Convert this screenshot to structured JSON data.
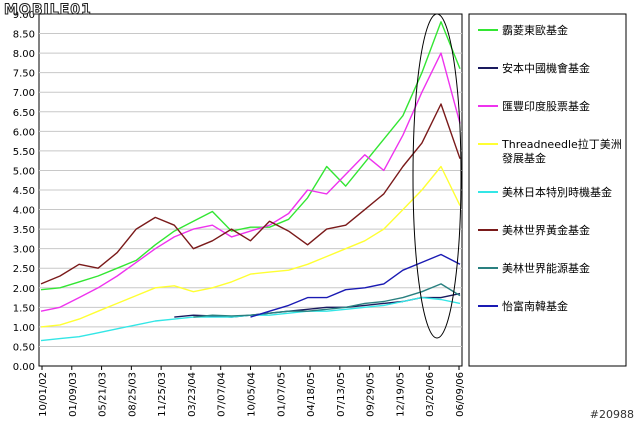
{
  "logo": "MOBILE01",
  "watermark": "#20988",
  "chart_data": {
    "type": "line",
    "title": "",
    "xlabel": "",
    "ylabel": "",
    "ylim": [
      0,
      9
    ],
    "yticks": [
      "0.00",
      "0.50",
      "1.00",
      "1.50",
      "2.00",
      "2.50",
      "3.00",
      "3.50",
      "4.00",
      "4.50",
      "5.00",
      "5.50",
      "6.00",
      "6.50",
      "7.00",
      "7.50",
      "8.00",
      "8.50",
      "9.00"
    ],
    "xticks": [
      "10/01/02",
      "01/09/03",
      "05/21/03",
      "08/25/03",
      "11/25/03",
      "03/23/04",
      "07/07/04",
      "10/05/04",
      "01/07/05",
      "04/18/05",
      "07/13/05",
      "09/29/05",
      "12/19/05",
      "03/20/06",
      "06/09/06"
    ],
    "grid": true,
    "legend_position": "right",
    "series": [
      {
        "name": "霸菱東歐基金",
        "color": "#33e633",
        "values": [
          1.95,
          2.0,
          2.15,
          2.3,
          2.5,
          2.7,
          3.1,
          3.45,
          3.7,
          3.95,
          3.45,
          3.55,
          3.55,
          3.75,
          4.3,
          5.1,
          4.6,
          5.2,
          5.8,
          6.4,
          7.5,
          8.8,
          7.6
        ]
      },
      {
        "name": "安本中國機會基金",
        "color": "#1a1a5e",
        "values": [
          null,
          null,
          null,
          null,
          null,
          null,
          null,
          1.25,
          1.3,
          1.28,
          1.25,
          1.3,
          1.35,
          1.4,
          1.45,
          1.5,
          1.5,
          1.55,
          1.6,
          1.65,
          1.75,
          1.75,
          1.85
        ]
      },
      {
        "name": "匯豐印度股票基金",
        "color": "#ee33ee",
        "values": [
          1.4,
          1.5,
          1.75,
          2.0,
          2.3,
          2.65,
          3.0,
          3.3,
          3.5,
          3.6,
          3.3,
          3.45,
          3.6,
          3.9,
          4.5,
          4.4,
          4.9,
          5.4,
          5.0,
          5.9,
          7.0,
          8.0,
          6.2
        ]
      },
      {
        "name": "Threadneedle拉丁美洲發展基金",
        "color": "#ffff33",
        "values": [
          1.0,
          1.05,
          1.2,
          1.4,
          1.6,
          1.8,
          2.0,
          2.05,
          1.9,
          2.0,
          2.15,
          2.35,
          2.4,
          2.45,
          2.6,
          2.8,
          3.0,
          3.2,
          3.5,
          4.0,
          4.5,
          5.1,
          4.1
        ]
      },
      {
        "name": "美林日本特別時機基金",
        "color": "#33e6e6",
        "values": [
          0.65,
          0.7,
          0.75,
          0.85,
          0.95,
          1.05,
          1.15,
          1.2,
          1.25,
          1.25,
          1.25,
          1.3,
          1.3,
          1.35,
          1.4,
          1.4,
          1.45,
          1.5,
          1.55,
          1.65,
          1.75,
          1.7,
          1.6
        ]
      },
      {
        "name": "美林世界黃金基金",
        "color": "#7a1a1a",
        "values": [
          2.1,
          2.3,
          2.6,
          2.5,
          2.9,
          3.5,
          3.8,
          3.6,
          3.0,
          3.2,
          3.5,
          3.2,
          3.7,
          3.45,
          3.1,
          3.5,
          3.6,
          4.0,
          4.4,
          5.1,
          5.7,
          6.7,
          5.3
        ]
      },
      {
        "name": "美林世界能源基金",
        "color": "#2a8080",
        "values": [
          null,
          null,
          null,
          null,
          null,
          null,
          null,
          null,
          1.25,
          1.3,
          1.28,
          1.3,
          1.35,
          1.4,
          1.4,
          1.45,
          1.5,
          1.6,
          1.65,
          1.75,
          1.9,
          2.1,
          1.8
        ]
      },
      {
        "name": "怡富南韓基金",
        "color": "#1a1ab3",
        "values": [
          null,
          null,
          null,
          null,
          null,
          null,
          null,
          null,
          null,
          null,
          null,
          1.25,
          1.4,
          1.55,
          1.75,
          1.75,
          1.95,
          2.0,
          2.1,
          2.45,
          2.65,
          2.85,
          2.6
        ]
      }
    ]
  }
}
